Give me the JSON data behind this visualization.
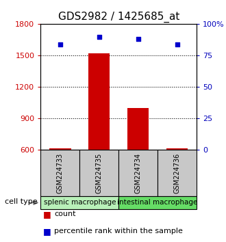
{
  "title": "GDS2982 / 1425685_at",
  "samples": [
    "GSM224733",
    "GSM224735",
    "GSM224734",
    "GSM224736"
  ],
  "count_values": [
    615,
    1520,
    1000,
    618
  ],
  "percentile_values": [
    84,
    90,
    88,
    84
  ],
  "count_base": 600,
  "ylim_left": [
    600,
    1800
  ],
  "ylim_right": [
    0,
    100
  ],
  "yticks_left": [
    600,
    900,
    1200,
    1500,
    1800
  ],
  "yticks_right": [
    0,
    25,
    50,
    75,
    100
  ],
  "ytick_right_labels": [
    "0",
    "25",
    "50",
    "75",
    "100%"
  ],
  "grid_yticks": [
    900,
    1200,
    1500
  ],
  "groups": [
    {
      "label": "splenic macrophage",
      "samples": [
        0,
        1
      ],
      "color": "#b8f0b8"
    },
    {
      "label": "intestinal macrophage",
      "samples": [
        2,
        3
      ],
      "color": "#66dd66"
    }
  ],
  "bar_color": "#cc0000",
  "dot_color": "#0000cc",
  "bar_width": 0.55,
  "bg_color": "#ffffff",
  "sample_box_color": "#c8c8c8",
  "legend_count_color": "#cc0000",
  "legend_percentile_color": "#0000cc",
  "left_axis_color": "#cc0000",
  "right_axis_color": "#0000bb",
  "title_fontsize": 11,
  "tick_fontsize": 8,
  "sample_fontsize": 7,
  "group_fontsize": 7.5,
  "legend_fontsize": 8
}
